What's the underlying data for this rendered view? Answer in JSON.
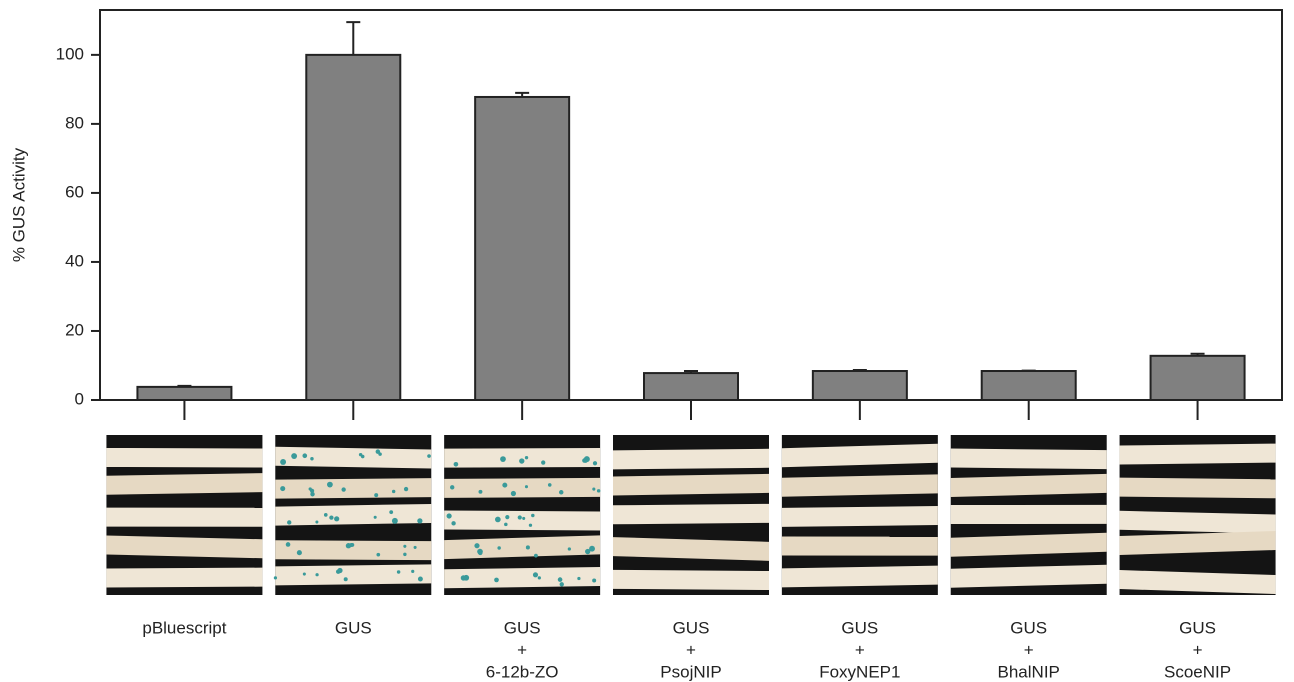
{
  "chart_data": {
    "type": "bar",
    "y_label": "% GUS Activity",
    "categories": [
      [
        "pBluescript"
      ],
      [
        "GUS"
      ],
      [
        "GUS",
        "+",
        "6-12b-ZO"
      ],
      [
        "GUS",
        "+",
        "PsojNIP"
      ],
      [
        "GUS",
        "+",
        "FoxyNEP1"
      ],
      [
        "GUS",
        "+",
        "BhalNIP"
      ],
      [
        "GUS",
        "+",
        "ScoeNIP"
      ]
    ],
    "series": [
      {
        "color": "#808080",
        "values": [
          3.8,
          100,
          87.8,
          7.8,
          8.4,
          8.4,
          12.8
        ],
        "errors": [
          0.3,
          9.5,
          1.2,
          0.6,
          0.3,
          0.1,
          0.6
        ]
      }
    ],
    "ylim": [
      0,
      113
    ],
    "yticks": [
      0,
      20,
      40,
      60,
      80,
      100
    ]
  }
}
